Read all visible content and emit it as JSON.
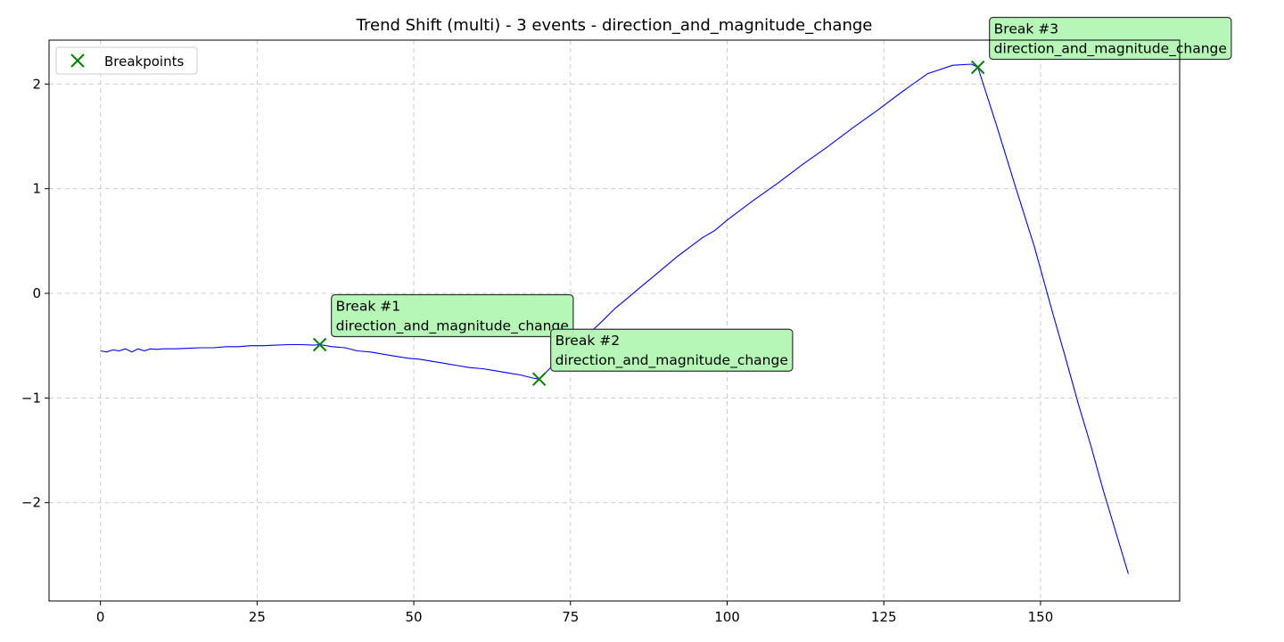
{
  "chart_data": {
    "type": "line",
    "title": "Trend Shift (multi) - 3 events - direction_and_magnitude_change",
    "xlabel": "",
    "ylabel": "",
    "xlim": [
      -8.2,
      172.2
    ],
    "ylim": [
      -2.94,
      2.42
    ],
    "x_ticks": [
      0,
      25,
      50,
      75,
      100,
      125,
      150
    ],
    "x_tick_labels": [
      "0",
      "25",
      "50",
      "75",
      "100",
      "125",
      "150"
    ],
    "y_ticks": [
      -2,
      -1,
      0,
      1,
      2
    ],
    "y_tick_labels": [
      "−2",
      "−1",
      "0",
      "1",
      "2"
    ],
    "grid": true,
    "legend": {
      "placement": "upper-left",
      "entries": [
        {
          "label": "Breakpoints",
          "marker": "x",
          "color": "#008000"
        }
      ]
    },
    "series": [
      {
        "color": "#0000ff",
        "x": [
          0,
          1,
          2,
          3,
          4,
          5,
          6,
          7,
          8,
          9,
          10,
          12,
          14,
          16,
          18,
          20,
          22,
          24,
          26,
          28,
          30,
          32,
          34,
          35,
          37,
          39,
          41,
          43,
          45,
          47,
          49,
          51,
          53,
          55,
          57,
          59,
          61,
          63,
          65,
          67,
          69,
          70,
          72,
          74,
          76,
          78,
          80,
          82,
          84,
          86,
          88,
          90,
          92,
          94,
          96,
          98,
          100,
          104,
          108,
          112,
          116,
          120,
          124,
          128,
          132,
          136,
          139,
          140,
          143,
          146,
          149,
          152,
          154,
          156,
          158,
          160,
          162,
          164
        ],
        "values": [
          -0.55,
          -0.56,
          -0.54,
          -0.55,
          -0.53,
          -0.56,
          -0.53,
          -0.55,
          -0.53,
          -0.535,
          -0.53,
          -0.53,
          -0.525,
          -0.52,
          -0.52,
          -0.51,
          -0.51,
          -0.5,
          -0.5,
          -0.495,
          -0.49,
          -0.49,
          -0.495,
          -0.49,
          -0.51,
          -0.52,
          -0.55,
          -0.56,
          -0.58,
          -0.6,
          -0.62,
          -0.63,
          -0.65,
          -0.67,
          -0.69,
          -0.71,
          -0.72,
          -0.74,
          -0.76,
          -0.78,
          -0.81,
          -0.82,
          -0.7,
          -0.6,
          -0.49,
          -0.38,
          -0.27,
          -0.15,
          -0.05,
          0.05,
          0.15,
          0.25,
          0.35,
          0.44,
          0.53,
          0.6,
          0.7,
          0.88,
          1.05,
          1.23,
          1.4,
          1.58,
          1.75,
          1.93,
          2.1,
          2.18,
          2.19,
          2.16,
          1.6,
          1.02,
          0.45,
          -0.2,
          -0.62,
          -1.05,
          -1.45,
          -1.88,
          -2.28,
          -2.68
        ]
      }
    ],
    "breakpoints": {
      "name": "Breakpoints",
      "color": "#008000",
      "points": [
        {
          "x": 35,
          "y": -0.49,
          "label_line1": "Break #1",
          "label_line2": "direction_and_magnitude_change"
        },
        {
          "x": 70,
          "y": -0.82,
          "label_line1": "Break #2",
          "label_line2": "direction_and_magnitude_change"
        },
        {
          "x": 140,
          "y": 2.16,
          "label_line1": "Break #3",
          "label_line2": "direction_and_magnitude_change"
        }
      ],
      "box_color": "#b2f5b2"
    }
  }
}
